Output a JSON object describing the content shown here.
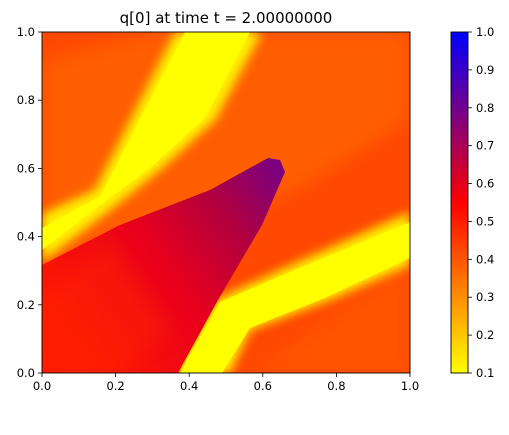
{
  "chart_data": {
    "type": "heatmap",
    "title": "q[0] at time t =     2.00000000",
    "xlim": [
      0.0,
      1.0
    ],
    "ylim": [
      0.0,
      1.0
    ],
    "x_ticks": [
      "0.0",
      "0.2",
      "0.4",
      "0.6",
      "0.8",
      "1.0"
    ],
    "y_ticks": [
      "0.0",
      "0.2",
      "0.4",
      "0.6",
      "0.8",
      "1.0"
    ],
    "colorbar": {
      "range": [
        0.1,
        1.0
      ],
      "ticks": [
        "0.1",
        "0.2",
        "0.3",
        "0.4",
        "0.5",
        "0.6",
        "0.7",
        "0.8",
        "0.9",
        "1.0"
      ],
      "colormap_stops": [
        {
          "value": 0.1,
          "color": "#ffff00"
        },
        {
          "value": 0.55,
          "color": "#ff0000"
        },
        {
          "value": 1.0,
          "color": "#0000ff"
        }
      ]
    },
    "field": {
      "background_value": 0.4,
      "bands": [
        {
          "value": 0.1,
          "description": "upper-left yellow band",
          "center_line": [
            [
              0.0,
              0.44
            ],
            [
              0.18,
              0.52
            ],
            [
              0.58,
              0.98
            ]
          ]
        },
        {
          "value": 0.1,
          "description": "lower-right yellow band",
          "center_line": [
            [
              0.4,
              0.0
            ],
            [
              0.52,
              0.16
            ],
            [
              1.0,
              0.43
            ]
          ]
        }
      ],
      "wedge": {
        "vertices": [
          [
            0.0,
            0.36
          ],
          [
            0.0,
            0.0
          ],
          [
            0.37,
            0.0
          ],
          [
            0.58,
            0.38
          ],
          [
            0.65,
            0.62
          ],
          [
            0.6,
            0.66
          ]
        ],
        "value_range": [
          0.55,
          0.72
        ]
      }
    }
  }
}
